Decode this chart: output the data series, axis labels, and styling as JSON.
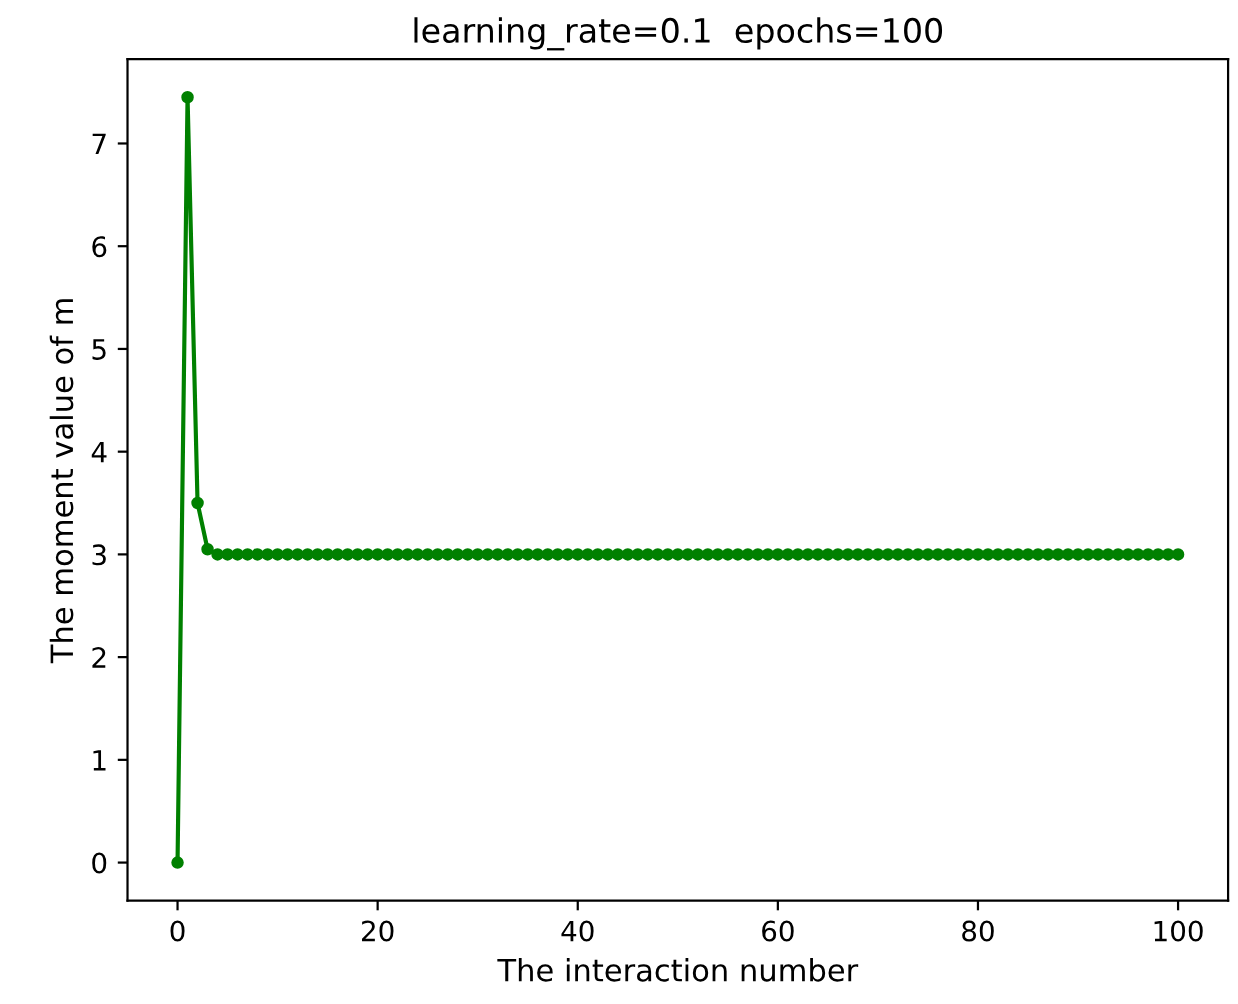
{
  "chart_data": {
    "type": "line",
    "title": "learning_rate=0.1  epochs=100",
    "xlabel": "The interaction number",
    "ylabel": "The moment value of m",
    "x": [
      0,
      1,
      2,
      3,
      4,
      5,
      6,
      7,
      8,
      9,
      10,
      11,
      12,
      13,
      14,
      15,
      16,
      17,
      18,
      19,
      20,
      21,
      22,
      23,
      24,
      25,
      26,
      27,
      28,
      29,
      30,
      31,
      32,
      33,
      34,
      35,
      36,
      37,
      38,
      39,
      40,
      41,
      42,
      43,
      44,
      45,
      46,
      47,
      48,
      49,
      50,
      51,
      52,
      53,
      54,
      55,
      56,
      57,
      58,
      59,
      60,
      61,
      62,
      63,
      64,
      65,
      66,
      67,
      68,
      69,
      70,
      71,
      72,
      73,
      74,
      75,
      76,
      77,
      78,
      79,
      80,
      81,
      82,
      83,
      84,
      85,
      86,
      87,
      88,
      89,
      90,
      91,
      92,
      93,
      94,
      95,
      96,
      97,
      98,
      99,
      100
    ],
    "series": [
      {
        "color": "#008000",
        "values": [
          0,
          7.45,
          3.5,
          3.05,
          3.0,
          3.0,
          3.0,
          3.0,
          3.0,
          3.0,
          3.0,
          3.0,
          3.0,
          3.0,
          3.0,
          3.0,
          3.0,
          3.0,
          3.0,
          3.0,
          3.0,
          3.0,
          3.0,
          3.0,
          3.0,
          3.0,
          3.0,
          3.0,
          3.0,
          3.0,
          3.0,
          3.0,
          3.0,
          3.0,
          3.0,
          3.0,
          3.0,
          3.0,
          3.0,
          3.0,
          3.0,
          3.0,
          3.0,
          3.0,
          3.0,
          3.0,
          3.0,
          3.0,
          3.0,
          3.0,
          3.0,
          3.0,
          3.0,
          3.0,
          3.0,
          3.0,
          3.0,
          3.0,
          3.0,
          3.0,
          3.0,
          3.0,
          3.0,
          3.0,
          3.0,
          3.0,
          3.0,
          3.0,
          3.0,
          3.0,
          3.0,
          3.0,
          3.0,
          3.0,
          3.0,
          3.0,
          3.0,
          3.0,
          3.0,
          3.0,
          3.0,
          3.0,
          3.0,
          3.0,
          3.0,
          3.0,
          3.0,
          3.0,
          3.0,
          3.0,
          3.0,
          3.0,
          3.0,
          3.0,
          3.0,
          3.0,
          3.0,
          3.0,
          3.0,
          3.0,
          3.0
        ]
      }
    ],
    "xlim": [
      -5,
      105
    ],
    "ylim": [
      -0.37,
      7.82
    ],
    "xticks": [
      0,
      20,
      40,
      60,
      80,
      100
    ],
    "yticks": [
      0,
      1,
      2,
      3,
      4,
      5,
      6,
      7
    ],
    "marker": "circle",
    "line_style": "solid",
    "grid": false,
    "legend": false
  }
}
